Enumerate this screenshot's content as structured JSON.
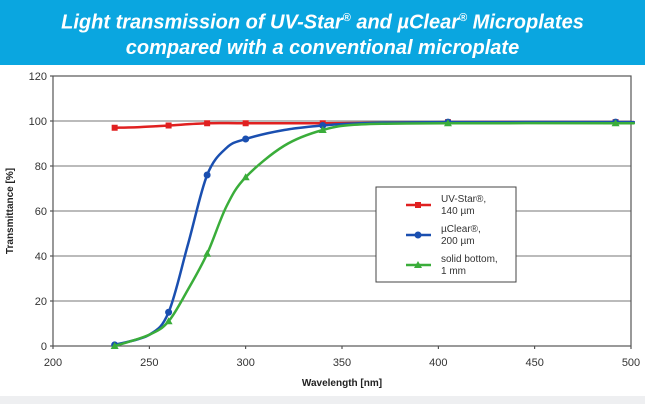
{
  "banner": {
    "line1_a": "Light transmission of UV-Star",
    "line1_reg1": "®",
    "line1_b": " and µClear",
    "line1_reg2": "®",
    "line1_c": " Microplates",
    "line2": "compared with a conventional microplate"
  },
  "chart_data": {
    "type": "line",
    "title": "Light transmission of UV-Star® and µClear® Microplates compared with a conventional microplate",
    "xlabel": "Wavelength [nm]",
    "ylabel": "Transmittance [%]",
    "xlim": [
      200,
      500
    ],
    "ylim": [
      0,
      120
    ],
    "xticks": [
      200,
      250,
      300,
      350,
      400,
      450,
      500
    ],
    "yticks": [
      0,
      20,
      40,
      60,
      80,
      100,
      120
    ],
    "grid": "horizontal",
    "legend_position": "center-right",
    "series": [
      {
        "name": "UV-Star®, 140 µm",
        "legend_lines": [
          "UV-Star®,",
          "140 µm"
        ],
        "color": "#e02020",
        "marker": "square",
        "x": [
          232,
          260,
          280,
          300,
          340,
          405,
          492
        ],
        "y": [
          97,
          98,
          99,
          99,
          99,
          99.5,
          99.5
        ],
        "curve_x": [
          232,
          245,
          260,
          280,
          300,
          340,
          405,
          492,
          500
        ],
        "curve_y": [
          97,
          97.3,
          98,
          99,
          99,
          99,
          99.5,
          99.5,
          99.5
        ]
      },
      {
        "name": "µClear®, 200 µm",
        "legend_lines": [
          "µClear®,",
          "200 µm"
        ],
        "color": "#1a4fb0",
        "marker": "circle",
        "x": [
          232,
          260,
          280,
          300,
          340,
          405,
          492
        ],
        "y": [
          0.5,
          15,
          76,
          92,
          98,
          99.5,
          99.5
        ],
        "curve_x": [
          232,
          250,
          260,
          270,
          280,
          290,
          300,
          320,
          340,
          360,
          405,
          492,
          500
        ],
        "curve_y": [
          0.5,
          5,
          15,
          45,
          76,
          88,
          92,
          96,
          98,
          99,
          99.5,
          99.5,
          99.5
        ]
      },
      {
        "name": "solid bottom, 1 mm",
        "legend_lines": [
          "solid bottom,",
          "1 mm"
        ],
        "color": "#3aad3a",
        "marker": "triangle",
        "x": [
          232,
          260,
          280,
          300,
          340,
          405,
          492
        ],
        "y": [
          0,
          11,
          41,
          75,
          96,
          99,
          99
        ],
        "curve_x": [
          232,
          250,
          260,
          270,
          280,
          290,
          300,
          320,
          340,
          360,
          405,
          492,
          500
        ],
        "curve_y": [
          0,
          5,
          11,
          25,
          41,
          62,
          75,
          89,
          96,
          98.5,
          99,
          99,
          99
        ]
      }
    ]
  }
}
